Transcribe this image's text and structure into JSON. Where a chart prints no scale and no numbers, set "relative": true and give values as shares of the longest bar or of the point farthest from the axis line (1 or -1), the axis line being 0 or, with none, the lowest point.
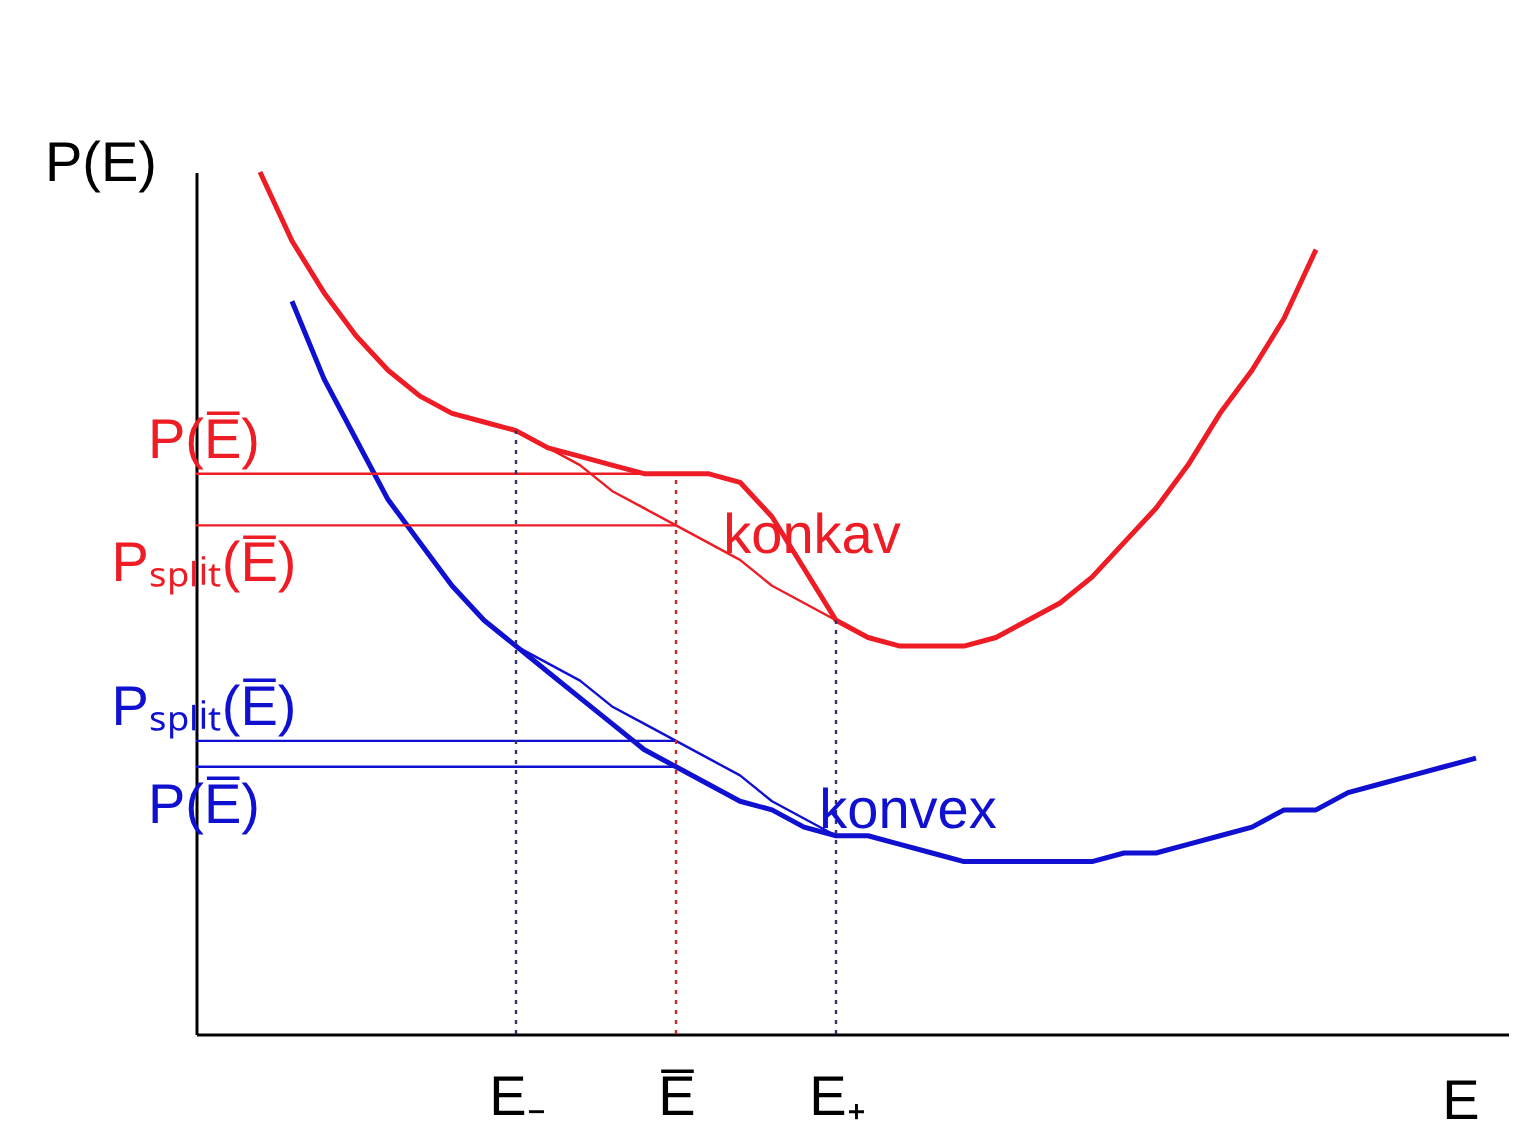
{
  "chart_data": {
    "type": "line",
    "relative": true,
    "xlabel": "E",
    "ylabel": "P(E)",
    "categories": [
      null,
      null,
      null,
      null,
      null,
      null,
      null,
      null,
      null,
      null,
      "E₋",
      null,
      null,
      null,
      null,
      "E̅",
      null,
      null,
      null,
      null,
      "E₊",
      null,
      null,
      null,
      null,
      null,
      null,
      null,
      null,
      null,
      null,
      null,
      null,
      null,
      null,
      null,
      null,
      null,
      null,
      null,
      null,
      null
    ],
    "series": [
      {
        "name": "konkav",
        "color": "#ee1c25",
        "values": [
          null,
          null,
          1,
          0.92,
          0.86,
          0.81,
          0.77,
          0.74,
          0.72,
          0.71,
          0.7,
          0.68,
          0.67,
          0.66,
          0.65,
          0.65,
          0.65,
          0.64,
          0.6,
          0.54,
          0.48,
          0.46,
          0.45,
          0.45,
          0.45,
          0.46,
          0.48,
          0.5,
          0.53,
          0.57,
          0.61,
          0.66,
          0.72,
          0.77,
          0.83,
          0.91,
          null,
          null,
          null,
          null,
          null,
          null
        ]
      },
      {
        "name": "konvex",
        "color": "#1010d0",
        "values": [
          null,
          null,
          null,
          0.85,
          0.76,
          0.69,
          0.62,
          0.57,
          0.52,
          0.48,
          0.45,
          0.42,
          0.39,
          0.36,
          0.33,
          0.31,
          0.29,
          0.27,
          0.26,
          0.24,
          0.23,
          0.23,
          0.22,
          0.21,
          0.2,
          0.2,
          0.2,
          0.2,
          0.2,
          0.21,
          0.21,
          0.22,
          0.23,
          0.24,
          0.26,
          0.26,
          0.28,
          0.29,
          0.3,
          0.31,
          0.32,
          null
        ]
      },
      {
        "color": "#ee1c25",
        "values": [
          null,
          null,
          null,
          null,
          null,
          null,
          null,
          null,
          null,
          null,
          0.7,
          0.68,
          0.66,
          0.63,
          0.61,
          0.59,
          0.57,
          0.55,
          0.52,
          0.5,
          0.48,
          null,
          null,
          null,
          null,
          null,
          null,
          null,
          null,
          null,
          null,
          null,
          null,
          null,
          null,
          null,
          null,
          null,
          null,
          null,
          null,
          null
        ]
      },
      {
        "color": "#1010d0",
        "values": [
          null,
          null,
          null,
          null,
          null,
          null,
          null,
          null,
          null,
          null,
          0.45,
          0.43,
          0.41,
          0.38,
          0.36,
          0.34,
          0.32,
          0.3,
          0.27,
          0.25,
          0.23,
          null,
          null,
          null,
          null,
          null,
          null,
          null,
          null,
          null,
          null,
          null,
          null,
          null,
          null,
          null,
          null,
          null,
          null,
          null,
          null,
          null
        ]
      },
      {
        "name": "P(E̅)",
        "color": "#ee1c25",
        "values": [
          0.65,
          0.65,
          0.65,
          0.65,
          0.65,
          0.65,
          0.65,
          0.65,
          0.65,
          0.65,
          0.65,
          0.65,
          0.65,
          0.65,
          0.65,
          0.65,
          null,
          null,
          null,
          null,
          null,
          null,
          null,
          null,
          null,
          null,
          null,
          null,
          null,
          null,
          null,
          null,
          null,
          null,
          null,
          null,
          null,
          null,
          null,
          null,
          null,
          null
        ]
      },
      {
        "name": "Pₛₚₗᵢₜ(E̅)",
        "color": "#ee1c25",
        "values": [
          0.59,
          0.59,
          0.59,
          0.59,
          0.59,
          0.59,
          0.59,
          0.59,
          0.59,
          0.59,
          0.59,
          0.59,
          0.59,
          0.59,
          0.59,
          0.59,
          null,
          null,
          null,
          null,
          null,
          null,
          null,
          null,
          null,
          null,
          null,
          null,
          null,
          null,
          null,
          null,
          null,
          null,
          null,
          null,
          null,
          null,
          null,
          null,
          null,
          null
        ]
      },
      {
        "name": "Pₛₚₗᵢₜ(E̅)",
        "color": "#1010d0",
        "values": [
          0.34,
          0.34,
          0.34,
          0.34,
          0.34,
          0.34,
          0.34,
          0.34,
          0.34,
          0.34,
          0.34,
          0.34,
          0.34,
          0.34,
          0.34,
          0.34,
          null,
          null,
          null,
          null,
          null,
          null,
          null,
          null,
          null,
          null,
          null,
          null,
          null,
          null,
          null,
          null,
          null,
          null,
          null,
          null,
          null,
          null,
          null,
          null,
          null,
          null
        ]
      },
      {
        "name": "P(E̅)",
        "color": "#1010d0",
        "values": [
          0.31,
          0.31,
          0.31,
          0.31,
          0.31,
          0.31,
          0.31,
          0.31,
          0.31,
          0.31,
          0.31,
          0.31,
          0.31,
          0.31,
          0.31,
          0.31,
          null,
          null,
          null,
          null,
          null,
          null,
          null,
          null,
          null,
          null,
          null,
          null,
          null,
          null,
          null,
          null,
          null,
          null,
          null,
          null,
          null,
          null,
          null,
          null,
          null,
          null
        ]
      }
    ],
    "ref_lines": [
      {
        "axis": "x",
        "value": "E₋",
        "color": "#333366",
        "line_style": "dotted"
      },
      {
        "axis": "x",
        "value": "E̅",
        "color": "#cc2a2a",
        "line_style": "dotted"
      },
      {
        "axis": "x",
        "value": "E₊",
        "color": "#333366",
        "line_style": "dotted"
      }
    ]
  }
}
